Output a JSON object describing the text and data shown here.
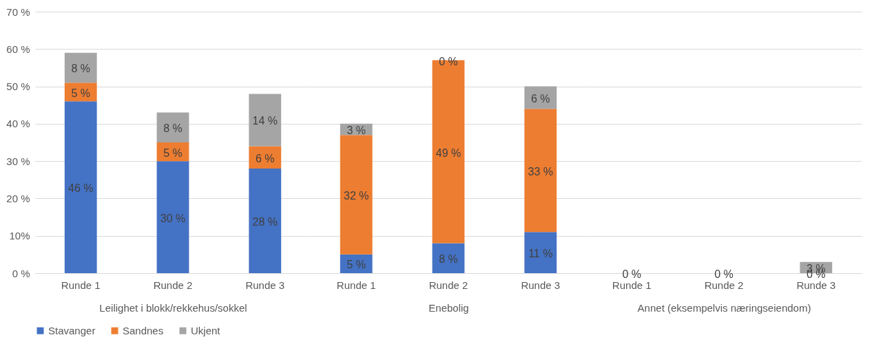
{
  "chart_data": [
    {
      "type": "bar",
      "stacked": true,
      "xlabel": "Leilighet i blokk/rekkehus/sokkel",
      "categories": [
        "Runde 1",
        "Runde 2",
        "Runde 3"
      ],
      "ylim": [
        0,
        70
      ],
      "yticks": [
        {
          "value": 0,
          "label": "0 %"
        },
        {
          "value": 10,
          "label": "10%"
        },
        {
          "value": 20,
          "label": "20 %"
        },
        {
          "value": 30,
          "label": "30 %"
        },
        {
          "value": 40,
          "label": "40 %"
        },
        {
          "value": 50,
          "label": "50 %"
        },
        {
          "value": 60,
          "label": "60 %"
        },
        {
          "value": 70,
          "label": "70 %"
        }
      ],
      "grid": "y",
      "legend": "bottom",
      "series": [
        {
          "name": "Stavanger",
          "color": "#4472c4",
          "values": [
            46,
            30,
            28
          ],
          "value_labels": [
            "46 %",
            "30 %",
            "28 %"
          ]
        },
        {
          "name": "Sandnes",
          "color": "#ed7d31",
          "values": [
            5,
            5,
            6
          ],
          "value_labels": [
            "5 %",
            "5 %",
            "6 %"
          ]
        },
        {
          "name": "Ukjent",
          "color": "#a5a5a5",
          "values": [
            8,
            8,
            14
          ],
          "value_labels": [
            "8 %",
            "8 %",
            "14 %"
          ]
        }
      ]
    },
    {
      "type": "bar",
      "stacked": true,
      "xlabel": "Enebolig",
      "categories": [
        "Runde 1",
        "Runde 2",
        "Runde 3"
      ],
      "ylim": [
        0,
        70
      ],
      "yticks": [
        0,
        10,
        20,
        30,
        40,
        50,
        60,
        70
      ],
      "grid": "y",
      "tick_labels": "x",
      "legend": "bottom",
      "series": [
        {
          "name": "Stavanger",
          "color": "#4472c4",
          "values": [
            5,
            8,
            11
          ],
          "value_labels": [
            "5 %",
            "8 %",
            "11 %"
          ]
        },
        {
          "name": "Sandnes",
          "color": "#ed7d31",
          "values": [
            32,
            49,
            33
          ],
          "value_labels": [
            "32 %",
            "49 %",
            "33 %"
          ]
        },
        {
          "name": "Ukjent",
          "color": "#a5a5a5",
          "values": [
            3,
            0,
            6
          ],
          "value_labels": [
            "3 %",
            "0 %",
            "6 %"
          ]
        }
      ]
    },
    {
      "type": "bar",
      "stacked": true,
      "xlabel": "Annet (eksempelvis næringseiendom)",
      "categories": [
        "Runde 1",
        "Runde 2",
        "Runde 3"
      ],
      "ylim": [
        0,
        70
      ],
      "yticks": [
        0,
        10,
        20,
        30,
        40,
        50,
        60,
        70
      ],
      "grid": "y",
      "tick_labels": "x",
      "legend": "bottom",
      "series": [
        {
          "name": "Stavanger",
          "color": "#4472c4",
          "values": [
            0,
            0,
            0
          ],
          "value_labels": [
            "0 %",
            "0 %",
            "0 %"
          ]
        },
        {
          "name": "Sandnes",
          "color": "#ed7d31",
          "values": [
            0,
            0,
            0
          ]
        },
        {
          "name": "Ukjent",
          "color": "#a5a5a5",
          "values": [
            0,
            0,
            3
          ],
          "value_labels": [
            null,
            null,
            "3 %"
          ]
        }
      ]
    }
  ]
}
